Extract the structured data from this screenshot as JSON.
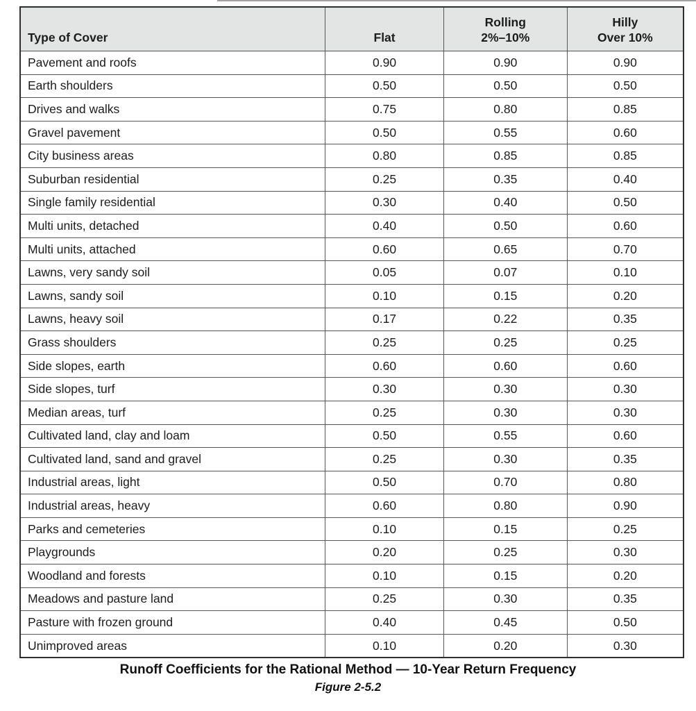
{
  "table": {
    "headers": [
      {
        "lines": [
          "Type of Cover"
        ]
      },
      {
        "lines": [
          "Flat"
        ]
      },
      {
        "lines": [
          "Rolling",
          "2%–10%"
        ]
      },
      {
        "lines": [
          "Hilly",
          "Over 10%"
        ]
      }
    ],
    "rows": [
      {
        "cover": "Pavement and roofs",
        "flat": "0.90",
        "rolling": "0.90",
        "hilly": "0.90"
      },
      {
        "cover": "Earth shoulders",
        "flat": "0.50",
        "rolling": "0.50",
        "hilly": "0.50"
      },
      {
        "cover": "Drives and walks",
        "flat": "0.75",
        "rolling": "0.80",
        "hilly": "0.85"
      },
      {
        "cover": "Gravel pavement",
        "flat": "0.50",
        "rolling": "0.55",
        "hilly": "0.60"
      },
      {
        "cover": "City business areas",
        "flat": "0.80",
        "rolling": "0.85",
        "hilly": "0.85"
      },
      {
        "cover": "Suburban residential",
        "flat": "0.25",
        "rolling": "0.35",
        "hilly": "0.40"
      },
      {
        "cover": "Single family residential",
        "flat": "0.30",
        "rolling": "0.40",
        "hilly": "0.50"
      },
      {
        "cover": "Multi units, detached",
        "flat": "0.40",
        "rolling": "0.50",
        "hilly": "0.60"
      },
      {
        "cover": "Multi units, attached",
        "flat": "0.60",
        "rolling": "0.65",
        "hilly": "0.70"
      },
      {
        "cover": "Lawns, very sandy soil",
        "flat": "0.05",
        "rolling": "0.07",
        "hilly": "0.10"
      },
      {
        "cover": "Lawns, sandy soil",
        "flat": "0.10",
        "rolling": "0.15",
        "hilly": "0.20"
      },
      {
        "cover": "Lawns, heavy soil",
        "flat": "0.17",
        "rolling": "0.22",
        "hilly": "0.35"
      },
      {
        "cover": "Grass shoulders",
        "flat": "0.25",
        "rolling": "0.25",
        "hilly": "0.25"
      },
      {
        "cover": "Side slopes, earth",
        "flat": "0.60",
        "rolling": "0.60",
        "hilly": "0.60"
      },
      {
        "cover": "Side slopes, turf",
        "flat": "0.30",
        "rolling": "0.30",
        "hilly": "0.30"
      },
      {
        "cover": "Median areas, turf",
        "flat": "0.25",
        "rolling": "0.30",
        "hilly": "0.30"
      },
      {
        "cover": "Cultivated land, clay and loam",
        "flat": "0.50",
        "rolling": "0.55",
        "hilly": "0.60"
      },
      {
        "cover": "Cultivated land, sand and gravel",
        "flat": "0.25",
        "rolling": "0.30",
        "hilly": "0.35"
      },
      {
        "cover": "Industrial areas, light",
        "flat": "0.50",
        "rolling": "0.70",
        "hilly": "0.80"
      },
      {
        "cover": "Industrial areas, heavy",
        "flat": "0.60",
        "rolling": "0.80",
        "hilly": "0.90"
      },
      {
        "cover": "Parks and cemeteries",
        "flat": "0.10",
        "rolling": "0.15",
        "hilly": "0.25"
      },
      {
        "cover": "Playgrounds",
        "flat": "0.20",
        "rolling": "0.25",
        "hilly": "0.30"
      },
      {
        "cover": "Woodland and forests",
        "flat": "0.10",
        "rolling": "0.15",
        "hilly": "0.20"
      },
      {
        "cover": "Meadows and pasture land",
        "flat": "0.25",
        "rolling": "0.30",
        "hilly": "0.35"
      },
      {
        "cover": "Pasture with frozen ground",
        "flat": "0.40",
        "rolling": "0.45",
        "hilly": "0.50"
      },
      {
        "cover": "Unimproved areas",
        "flat": "0.10",
        "rolling": "0.20",
        "hilly": "0.30"
      }
    ]
  },
  "caption": {
    "title": "Runoff Coefficients for the Rational Method — 10-Year Return Frequency",
    "figure": "Figure 2-5.2"
  },
  "colors": {
    "header_bg": "#e3e4e4",
    "border_outer": "#2e2e2e",
    "border_inner": "#565656",
    "text": "#1c1c1c"
  }
}
